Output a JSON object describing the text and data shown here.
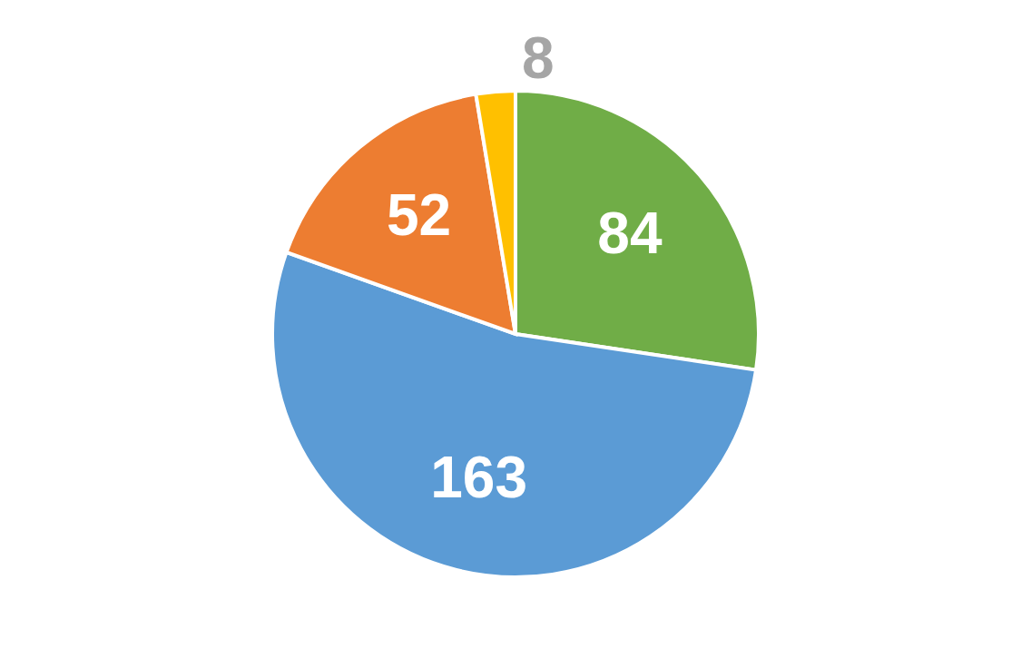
{
  "chart_data": {
    "type": "pie",
    "categories": [
      null,
      null,
      null,
      null
    ],
    "values": [
      84,
      163,
      52,
      8
    ],
    "colors": [
      "#70ad47",
      "#5b9bd5",
      "#ed7d31",
      "#ffc000"
    ],
    "data_labels": true
  }
}
